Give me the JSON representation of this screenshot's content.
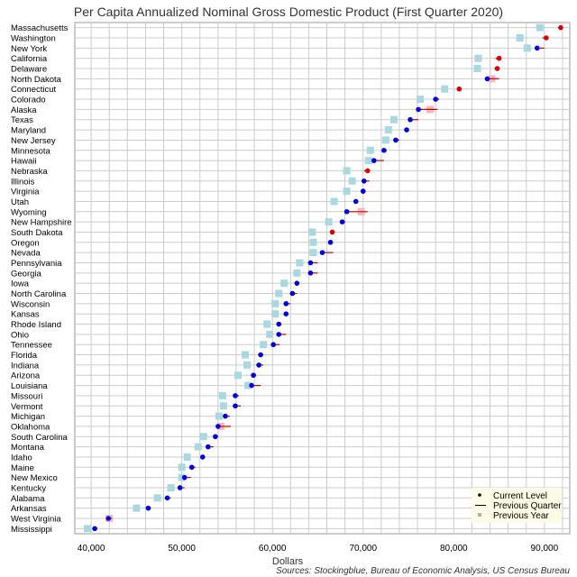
{
  "chart_data": {
    "type": "scatter",
    "title": "Per Capita Annualized Nominal Gross Domestic Product (First Quarter 2020)",
    "xlabel": "Dollars",
    "source": "Sources: Stockingblue, Bureau of Economic Analysis, US Census Bureau",
    "xlim": [
      38200,
      92800
    ],
    "xticks": [
      40000,
      50000,
      60000,
      70000,
      80000,
      90000
    ],
    "xtick_labels": [
      "40,000",
      "50,000",
      "60,000",
      "70,000",
      "80,000",
      "90,000"
    ],
    "grid": true,
    "legend_position": "bottom-right",
    "legend": {
      "current": "Current Level",
      "quarter": "Previous Quarter",
      "year": "Previous Year"
    },
    "colors": {
      "current_up": "#dd0000",
      "current_down": "#0000dd",
      "previous_quarter_line": "#cc0000",
      "previous_year_marker": "#a8d8e0",
      "previous_year_marker_alt": "#f4b8c0",
      "grid": "#cccccc",
      "frame": "#999999"
    },
    "categories": [
      "Massachusetts",
      "Washington",
      "New York",
      "California",
      "Delaware",
      "North Dakota",
      "Connecticut",
      "Colorado",
      "Alaska",
      "Texas",
      "Maryland",
      "New Jersey",
      "Minnesota",
      "Hawaii",
      "Nebraska",
      "Illinois",
      "Virginia",
      "Utah",
      "Wyoming",
      "New Hampshire",
      "South Dakota",
      "Oregon",
      "Nevada",
      "Pennsylvania",
      "Georgia",
      "Iowa",
      "North Carolina",
      "Wisconsin",
      "Kansas",
      "Rhode Island",
      "Ohio",
      "Tennessee",
      "Florida",
      "Indiana",
      "Arizona",
      "Louisiana",
      "Missouri",
      "Vermont",
      "Michigan",
      "Oklahoma",
      "South Carolina",
      "Montana",
      "Idaho",
      "Maine",
      "New Mexico",
      "Kentucky",
      "Alabama",
      "Arkansas",
      "West Virginia",
      "Mississippi"
    ],
    "series": [
      {
        "name": "Current Level",
        "values": [
          91800,
          90200,
          89200,
          85000,
          84800,
          83700,
          80600,
          78000,
          76100,
          75200,
          74800,
          73600,
          72300,
          71200,
          70500,
          70100,
          70000,
          69200,
          68200,
          67700,
          66600,
          66400,
          65500,
          64200,
          64200,
          62700,
          62200,
          61500,
          61500,
          60700,
          60700,
          60100,
          58700,
          58500,
          57900,
          57700,
          55900,
          55900,
          54800,
          54000,
          53700,
          52900,
          52300,
          51100,
          50300,
          49800,
          48400,
          46300,
          41900,
          40400
        ]
      },
      {
        "name": "Previous Quarter",
        "values": [
          91500,
          89800,
          90000,
          84600,
          84500,
          85000,
          80400,
          78400,
          78200,
          76100,
          75000,
          74000,
          72600,
          72300,
          70100,
          70700,
          70200,
          69300,
          70500,
          68000,
          66500,
          66500,
          66700,
          65000,
          65000,
          62800,
          62700,
          62000,
          61700,
          61000,
          61500,
          60800,
          59000,
          59000,
          58200,
          58700,
          56300,
          56500,
          55300,
          55400,
          54000,
          53500,
          52500,
          51500,
          51000,
          50300,
          48800,
          46600,
          42300,
          40500
        ]
      },
      {
        "name": "Previous Year",
        "values": [
          89500,
          87300,
          88100,
          82700,
          82600,
          84200,
          79000,
          76300,
          77400,
          73400,
          72800,
          72500,
          70800,
          70600,
          68200,
          68800,
          68200,
          66800,
          69800,
          66200,
          64400,
          64500,
          64500,
          63000,
          62700,
          61300,
          60700,
          60300,
          60300,
          59400,
          59700,
          59000,
          57000,
          57200,
          56200,
          57300,
          54500,
          54600,
          54100,
          54300,
          52400,
          51800,
          50600,
          50000,
          50000,
          48800,
          47300,
          45000,
          42000,
          39600
        ]
      }
    ]
  }
}
